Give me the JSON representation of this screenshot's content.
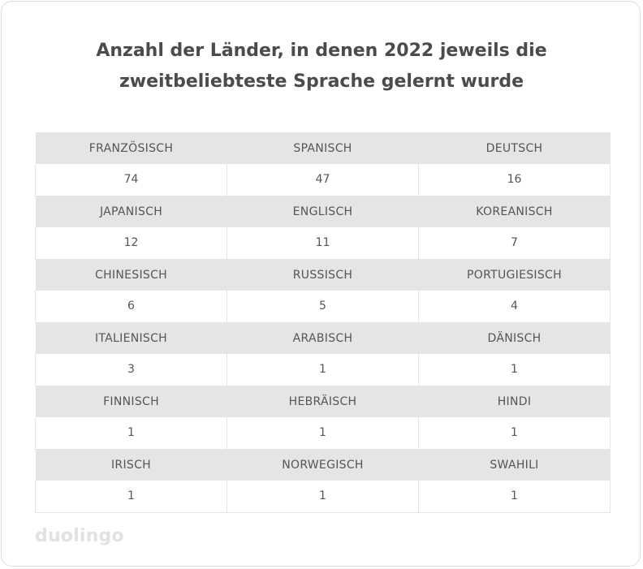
{
  "chart_data": {
    "type": "table",
    "title_lines": [
      "Anzahl der Länder, in denen 2022 jeweils die",
      "zweitbeliebteste Sprache gelernt wurde"
    ],
    "rows": [
      [
        {
          "label": "FRANZÖSISCH",
          "value": "74"
        },
        {
          "label": "SPANISCH",
          "value": "47"
        },
        {
          "label": "DEUTSCH",
          "value": "16"
        }
      ],
      [
        {
          "label": "JAPANISCH",
          "value": "12"
        },
        {
          "label": "ENGLISCH",
          "value": "11"
        },
        {
          "label": "KOREANISCH",
          "value": "7"
        }
      ],
      [
        {
          "label": "CHINESISCH",
          "value": "6"
        },
        {
          "label": "RUSSISCH",
          "value": "5"
        },
        {
          "label": "PORTUGIESISCH",
          "value": "4"
        }
      ],
      [
        {
          "label": "ITALIENISCH",
          "value": "3"
        },
        {
          "label": "ARABISCH",
          "value": "1"
        },
        {
          "label": "DÄNISCH",
          "value": "1"
        }
      ],
      [
        {
          "label": "FINNISCH",
          "value": "1"
        },
        {
          "label": "HEBRÄISCH",
          "value": "1"
        },
        {
          "label": "HINDI",
          "value": "1"
        }
      ],
      [
        {
          "label": "IRISCH",
          "value": "1"
        },
        {
          "label": "NORWEGISCH",
          "value": "1"
        },
        {
          "label": "SWAHILI",
          "value": "1"
        }
      ]
    ]
  },
  "branding": {
    "logo_text": "duolingo"
  },
  "colors": {
    "header_row_bg": "#e5e5e5",
    "text": "#4b4b4b",
    "logo": "#e2e2e2"
  }
}
